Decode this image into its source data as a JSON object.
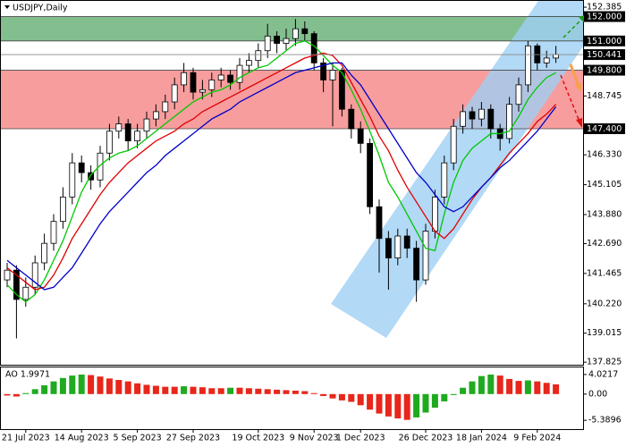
{
  "chart_data": [
    {
      "type": "candlestick",
      "title": "USDJPY,Daily",
      "categories": [
        null,
        null,
        "21 Jul 2023",
        null,
        null,
        null,
        null,
        null,
        "14 Aug 2023",
        null,
        null,
        null,
        null,
        null,
        "5 Sep 2023",
        null,
        null,
        null,
        null,
        null,
        "27 Sep 2023",
        null,
        null,
        null,
        null,
        null,
        null,
        "19 Oct 2023",
        null,
        null,
        null,
        null,
        null,
        "9 Nov 2023",
        null,
        null,
        null,
        null,
        "1 Dec 2023",
        null,
        null,
        null,
        null,
        null,
        null,
        "26 Dec 2023",
        null,
        null,
        null,
        null,
        null,
        "18 Jan 2024",
        null,
        null,
        null,
        null,
        null,
        "9 Feb 2024",
        null,
        null
      ],
      "open": [
        141.2,
        141.6,
        140.4,
        140.9,
        141.9,
        142.7,
        143.6,
        144.6,
        146.0,
        145.6,
        145.3,
        146.4,
        147.3,
        147.6,
        146.9,
        147.3,
        147.8,
        148.1,
        148.5,
        149.2,
        149.7,
        148.9,
        149.0,
        149.4,
        149.6,
        149.3,
        150.0,
        150.2,
        150.6,
        151.2,
        150.9,
        151.1,
        151.5,
        151.3,
        150.1,
        149.4,
        149.8,
        148.2,
        147.4,
        146.8,
        144.2,
        142.9,
        142.1,
        143.0,
        142.5,
        141.2,
        143.2,
        144.6,
        146.0,
        147.5,
        148.1,
        147.8,
        148.2,
        147.4,
        147.0,
        148.4,
        149.2,
        150.8,
        150.1,
        150.3
      ],
      "high": [
        141.9,
        141.8,
        141.3,
        142.2,
        143.1,
        143.9,
        145.0,
        146.4,
        146.3,
        145.9,
        146.7,
        147.6,
        147.9,
        147.8,
        147.6,
        148.1,
        148.4,
        148.8,
        149.5,
        150.1,
        149.9,
        149.4,
        149.7,
        149.9,
        149.8,
        150.3,
        150.5,
        150.9,
        151.7,
        151.4,
        151.5,
        151.9,
        151.8,
        151.4,
        150.3,
        150.1,
        149.9,
        148.4,
        147.7,
        147.0,
        144.5,
        143.2,
        143.3,
        143.3,
        142.8,
        143.5,
        144.9,
        146.3,
        147.8,
        148.4,
        148.3,
        148.5,
        148.4,
        147.6,
        148.7,
        149.5,
        151.0,
        150.9,
        150.6,
        150.8
      ],
      "low": [
        140.9,
        138.8,
        140.1,
        140.6,
        141.6,
        142.4,
        143.3,
        144.3,
        145.2,
        144.9,
        145.0,
        146.1,
        147.0,
        146.5,
        146.6,
        147.0,
        147.5,
        147.8,
        148.2,
        148.9,
        148.6,
        148.6,
        148.7,
        149.1,
        149.0,
        149.0,
        149.7,
        149.9,
        150.3,
        150.5,
        150.6,
        150.8,
        151.0,
        149.8,
        148.9,
        147.5,
        147.9,
        147.0,
        146.4,
        143.9,
        141.5,
        140.8,
        141.8,
        142.1,
        140.3,
        141.0,
        142.9,
        144.3,
        145.7,
        147.2,
        147.4,
        147.5,
        147.0,
        146.5,
        146.8,
        148.1,
        148.9,
        149.8,
        149.9,
        150.1
      ],
      "close": [
        141.6,
        140.4,
        140.9,
        141.9,
        142.7,
        143.6,
        144.6,
        146.0,
        145.6,
        145.3,
        146.4,
        147.3,
        147.6,
        146.9,
        147.3,
        147.8,
        148.1,
        148.5,
        149.2,
        149.7,
        148.9,
        149.0,
        149.4,
        149.6,
        149.3,
        150.0,
        150.2,
        150.6,
        151.2,
        150.9,
        151.1,
        151.5,
        151.3,
        150.1,
        149.4,
        149.8,
        148.2,
        147.4,
        146.8,
        144.2,
        142.9,
        142.1,
        143.0,
        142.5,
        141.2,
        143.2,
        144.6,
        146.0,
        147.5,
        148.1,
        147.8,
        148.2,
        147.4,
        147.0,
        148.4,
        149.2,
        150.8,
        150.1,
        150.3,
        150.441
      ],
      "series": [
        {
          "color": "#00c800",
          "values": [
            141.0,
            140.6,
            140.3,
            140.6,
            141.2,
            142.0,
            142.8,
            143.8,
            144.8,
            145.5,
            145.9,
            146.2,
            146.4,
            146.5,
            146.7,
            147.0,
            147.3,
            147.6,
            147.9,
            148.2,
            148.5,
            148.7,
            148.9,
            149.0,
            149.2,
            149.5,
            149.7,
            149.9,
            150.0,
            150.3,
            150.6,
            150.9,
            151.0,
            150.8,
            150.4,
            150.0,
            149.7,
            149.0,
            148.2,
            147.3,
            146.3,
            145.2,
            144.6,
            143.9,
            143.2,
            142.5,
            142.4,
            143.9,
            145.2,
            146.1,
            146.6,
            146.9,
            147.2,
            147.2,
            147.3,
            147.9,
            148.6,
            149.1,
            149.5,
            149.7
          ]
        },
        {
          "color": "#e00000",
          "values": [
            141.7,
            141.4,
            141.1,
            140.8,
            140.9,
            141.4,
            142.1,
            142.9,
            143.5,
            144.1,
            144.7,
            145.2,
            145.6,
            146.0,
            146.3,
            146.6,
            146.9,
            147.1,
            147.3,
            147.6,
            147.8,
            148.1,
            148.3,
            148.5,
            148.7,
            148.9,
            149.1,
            149.3,
            149.5,
            149.7,
            149.9,
            150.1,
            150.3,
            150.4,
            150.5,
            150.4,
            150.0,
            149.3,
            148.6,
            147.9,
            147.1,
            146.5,
            145.7,
            145.0,
            144.4,
            143.8,
            143.2,
            142.9,
            143.3,
            143.9,
            144.5,
            145.0,
            145.4,
            145.9,
            146.4,
            146.8,
            147.2,
            147.7,
            148.0,
            148.4
          ]
        },
        {
          "color": "#0000c8",
          "values": [
            142.0,
            141.7,
            141.4,
            141.1,
            140.8,
            140.9,
            141.3,
            141.7,
            142.3,
            142.9,
            143.5,
            144.0,
            144.4,
            144.8,
            145.2,
            145.6,
            145.9,
            146.3,
            146.6,
            146.9,
            147.2,
            147.5,
            147.8,
            148.0,
            148.2,
            148.5,
            148.7,
            148.9,
            149.1,
            149.3,
            149.5,
            149.7,
            149.8,
            149.9,
            150.0,
            150.1,
            150.1,
            149.6,
            149.2,
            148.6,
            148.0,
            147.4,
            146.8,
            146.2,
            145.6,
            145.2,
            144.7,
            144.2,
            144.0,
            144.2,
            144.6,
            145.0,
            145.4,
            145.8,
            146.1,
            146.5,
            146.9,
            147.3,
            147.8,
            148.3
          ]
        }
      ],
      "levels": [
        {
          "value": 152,
          "label": "152.000",
          "zone_color": "#5aa86a"
        },
        {
          "value": 151,
          "label": "151.000"
        },
        {
          "value": 149.8,
          "label": "149.800",
          "zone_color": "#f47c7c"
        },
        {
          "value": 147.4,
          "label": "147.400"
        }
      ],
      "ylim": [
        137.72,
        152.68
      ],
      "yticks": [
        152.385,
        148.745,
        {
          "value": 146.33,
          "label": "146.330"
        },
        145.105,
        {
          "value": 143.88,
          "label": "143.880"
        },
        {
          "value": 142.69,
          "label": "142.690"
        },
        141.465,
        {
          "value": 140.22,
          "label": "140.220"
        },
        139.015,
        137.825
      ],
      "up_color": "#ffffff",
      "down_color": "#000000",
      "grid": false
    },
    {
      "type": "histogram-oscillator",
      "title": "AO 1.9971",
      "values": [
        -0.3,
        -0.5,
        0.2,
        1.0,
        1.8,
        2.6,
        3.3,
        3.8,
        4.0,
        3.9,
        3.6,
        3.2,
        2.9,
        2.6,
        2.2,
        1.9,
        1.7,
        1.5,
        1.5,
        1.6,
        1.5,
        1.4,
        1.2,
        1.2,
        1.3,
        1.3,
        1.2,
        1.1,
        1.0,
        0.9,
        0.8,
        0.7,
        0.6,
        0.2,
        -0.4,
        -0.9,
        -1.3,
        -1.6,
        -2.3,
        -3.2,
        -4.0,
        -4.6,
        -5.0,
        -5.3,
        -4.8,
        -3.8,
        -2.8,
        -1.5,
        -0.2,
        1.3,
        2.6,
        3.7,
        4.0,
        3.8,
        3.1,
        2.7,
        2.8,
        2.6,
        2.3,
        1.9971
      ],
      "ylim": [
        -7.2,
        5.47
      ],
      "yticks": [
        4.0217,
        {
          "value": 0,
          "label": "0.00"
        },
        -5.3896
      ],
      "up_color": "#1faa1f",
      "down_color": "#e8261a"
    }
  ]
}
